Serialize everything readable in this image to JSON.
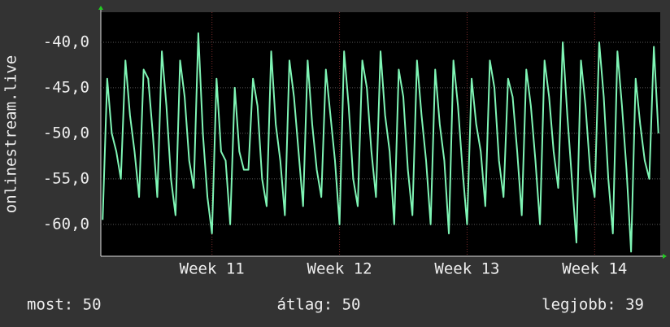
{
  "chart_data": {
    "type": "line",
    "y_label": "onlinestream.live",
    "x": [
      1,
      1.25,
      1.5,
      1.75,
      2,
      2.25,
      2.5,
      2.75,
      3,
      3.25,
      3.5,
      3.75,
      4,
      4.25,
      4.5,
      4.75,
      5,
      5.25,
      5.5,
      5.75,
      6,
      6.25,
      6.5,
      6.75,
      7,
      7.25,
      7.5,
      7.75,
      8,
      8.25,
      8.5,
      8.75,
      9,
      9.25,
      9.5,
      9.75,
      10,
      10.25,
      10.5,
      10.75,
      11,
      11.25,
      11.5,
      11.75,
      12,
      12.25,
      12.5,
      12.75,
      13,
      13.25,
      13.5,
      13.75,
      14,
      14.25,
      14.5,
      14.75,
      15,
      15.25,
      15.5,
      15.75,
      16,
      16.25,
      16.5,
      16.75,
      17,
      17.25,
      17.5,
      17.75,
      18,
      18.25,
      18.5,
      18.75,
      19,
      19.25,
      19.5,
      19.75,
      20,
      20.25,
      20.5,
      20.75,
      21,
      21.25,
      21.5,
      21.75,
      22,
      22.25,
      22.5,
      22.75,
      23,
      23.25,
      23.5,
      23.75,
      24,
      24.25,
      24.5,
      24.75,
      25,
      25.25,
      25.5,
      25.75,
      26,
      26.25,
      26.5,
      26.75,
      27,
      27.25,
      27.5,
      27.75,
      28,
      28.25,
      28.5,
      28.75,
      29,
      29.25,
      29.5,
      29.75,
      30,
      30.25,
      30.5,
      30.75,
      31,
      31.25,
      31.5
    ],
    "values": [
      -59.5,
      -44,
      -50,
      -52,
      -55,
      -42,
      -48,
      -52,
      -57,
      -43,
      -44,
      -50,
      -57,
      -41,
      -47,
      -55,
      -59,
      -42,
      -46,
      -53,
      -56,
      -39,
      -50,
      -57,
      -61,
      -44,
      -52,
      -53,
      -60,
      -45,
      -52,
      -54,
      -54,
      -44,
      -47,
      -55,
      -58,
      -41,
      -49,
      -53,
      -59,
      -42,
      -46,
      -52,
      -58,
      -42,
      -49,
      -54,
      -57,
      -43,
      -48,
      -53,
      -60,
      -41,
      -47,
      -55,
      -58,
      -42,
      -45,
      -52,
      -57,
      -41,
      -48,
      -52,
      -60,
      -43,
      -46,
      -54,
      -59,
      -42,
      -48,
      -53,
      -60,
      -43,
      -49,
      -53,
      -61,
      -42,
      -47,
      -54,
      -60,
      -44,
      -49,
      -52,
      -58,
      -42,
      -45,
      -53,
      -57,
      -44,
      -46,
      -52,
      -59,
      -43,
      -47,
      -53,
      -60,
      -42,
      -46,
      -52,
      -56,
      -40,
      -48,
      -55,
      -62,
      -42,
      -47,
      -54,
      -57,
      -40,
      -46,
      -55,
      -61,
      -41,
      -47,
      -54,
      -63,
      -44,
      -49,
      -53,
      -55,
      -40.5,
      -50
    ],
    "color": "#7ff5b5",
    "xlim": [
      0.9,
      31.6
    ],
    "xticks": [
      {
        "value": 7,
        "label": "Week 11"
      },
      {
        "value": 14,
        "label": "Week 12"
      },
      {
        "value": 21,
        "label": "Week 13"
      },
      {
        "value": 28,
        "label": "Week 14"
      }
    ],
    "ylim": [
      -63.5,
      -36.7
    ],
    "yticks": [
      {
        "value": -60,
        "label": "-60,0"
      },
      {
        "value": -55,
        "label": "-55,0"
      },
      {
        "value": -50,
        "label": "-50,0"
      },
      {
        "value": -45,
        "label": "-45,0"
      },
      {
        "value": -40,
        "label": "-40,0"
      }
    ],
    "grid": true,
    "footer": [
      "most: 50",
      "átlag: 50",
      "legjobb: 39"
    ]
  }
}
